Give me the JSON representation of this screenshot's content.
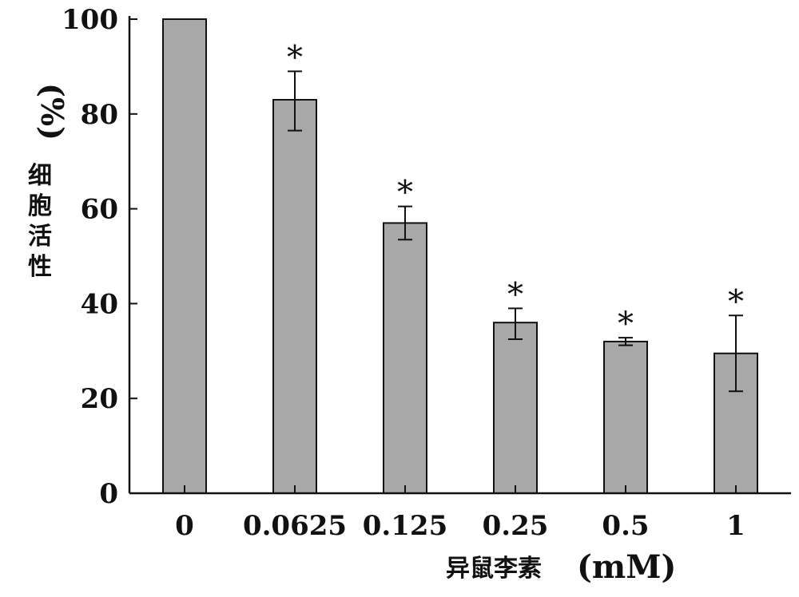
{
  "chart_data": {
    "type": "bar",
    "categories": [
      "0",
      "0.0625",
      "0.125",
      "0.25",
      "0.5",
      "1"
    ],
    "values": [
      100,
      83,
      57,
      36,
      32,
      29.5
    ],
    "error_low": [
      null,
      76.5,
      53.5,
      32.5,
      31.2,
      21.5
    ],
    "error_high": [
      null,
      89,
      60.5,
      39,
      32.8,
      37.5
    ],
    "significance": [
      "",
      "*",
      "*",
      "*",
      "*",
      "*"
    ],
    "ylim": [
      0,
      100
    ],
    "yticks": [
      0,
      20,
      40,
      60,
      80,
      100
    ],
    "ylabel_unit": "(%)",
    "ylabel": "细胞活性",
    "xlabel": "异鼠李素",
    "xlabel_unit": "(mM)",
    "grid": false,
    "colors": {
      "bar_fill": "#a8a8a8",
      "bar_stroke": "#111111",
      "axis": "#111111"
    }
  }
}
